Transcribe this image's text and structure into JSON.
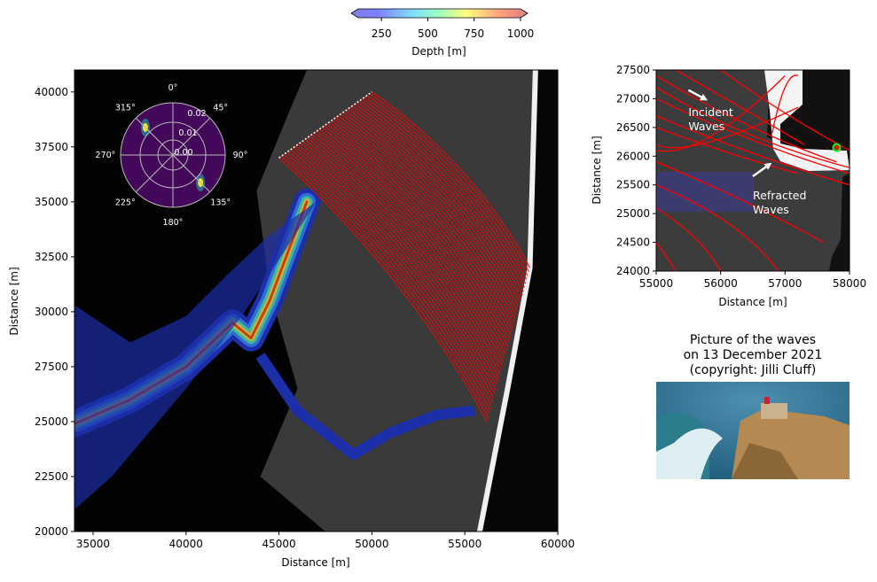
{
  "chart_data": {
    "type": "heatmap",
    "colorbar": {
      "label": "Depth [m]",
      "ticks": [
        250,
        500,
        750,
        1000
      ],
      "range": [
        125,
        1000
      ],
      "colormap": "jet (alpha 0.5)",
      "extend": "both"
    },
    "main_map": {
      "xlabel": "Distance [m]",
      "ylabel": "Distance [m]",
      "xlim": [
        34000,
        60000
      ],
      "ylim": [
        20000,
        41000
      ],
      "xticks": [
        35000,
        40000,
        45000,
        50000,
        55000,
        60000
      ],
      "yticks": [
        20000,
        22500,
        25000,
        27500,
        30000,
        32500,
        35000,
        37500,
        40000
      ],
      "ray_start_line": [
        [
          45000,
          37000
        ],
        [
          50000,
          40000
        ]
      ],
      "ray_count": 40,
      "ray_color": "#ff0000",
      "canyon_axis": [
        [
          34000,
          24900
        ],
        [
          37000,
          26000
        ],
        [
          40000,
          27500
        ],
        [
          42500,
          29500
        ],
        [
          43500,
          28800
        ],
        [
          44500,
          30500
        ],
        [
          46500,
          35000
        ]
      ],
      "canyon_tail": [
        [
          44000,
          28000
        ],
        [
          46000,
          25500
        ],
        [
          49000,
          23500
        ],
        [
          51000,
          24500
        ],
        [
          53500,
          25300
        ],
        [
          55500,
          25500
        ]
      ]
    },
    "polar_inset": {
      "angle_labels": [
        "0°",
        "45°",
        "90°",
        "135°",
        "180°",
        "225°",
        "270°",
        "315°"
      ],
      "radial_labels": [
        "0.00",
        "0.01",
        "0.02"
      ],
      "peaks_deg": [
        315,
        135
      ]
    },
    "zoom_map": {
      "xlabel": "Distance [m]",
      "ylabel": "Distance [m]",
      "xlim": [
        55000,
        58000
      ],
      "ylim": [
        24000,
        27500
      ],
      "xticks": [
        55000,
        56000,
        57000,
        58000
      ],
      "yticks": [
        24000,
        24500,
        25000,
        25500,
        26000,
        26500,
        27000,
        27500
      ],
      "annotations": [
        {
          "text": [
            "Incident",
            "Waves"
          ],
          "at": [
            55500,
            26700
          ],
          "arrow_from": [
            55500,
            27150
          ],
          "arrow_to": [
            55750,
            27000
          ]
        },
        {
          "text": [
            "Refracted",
            "Waves"
          ],
          "at": [
            56500,
            25250
          ],
          "arrow_from": [
            56500,
            25650
          ],
          "arrow_to": [
            56750,
            25850
          ]
        }
      ],
      "marker": {
        "x": 57800,
        "y": 26150,
        "fill": "#ff0000",
        "edge": "#00ff00"
      }
    },
    "photo": {
      "title": [
        "Picture of the waves",
        "on 13 December 2021",
        "(copyright: Jilli Cluff)"
      ]
    }
  }
}
